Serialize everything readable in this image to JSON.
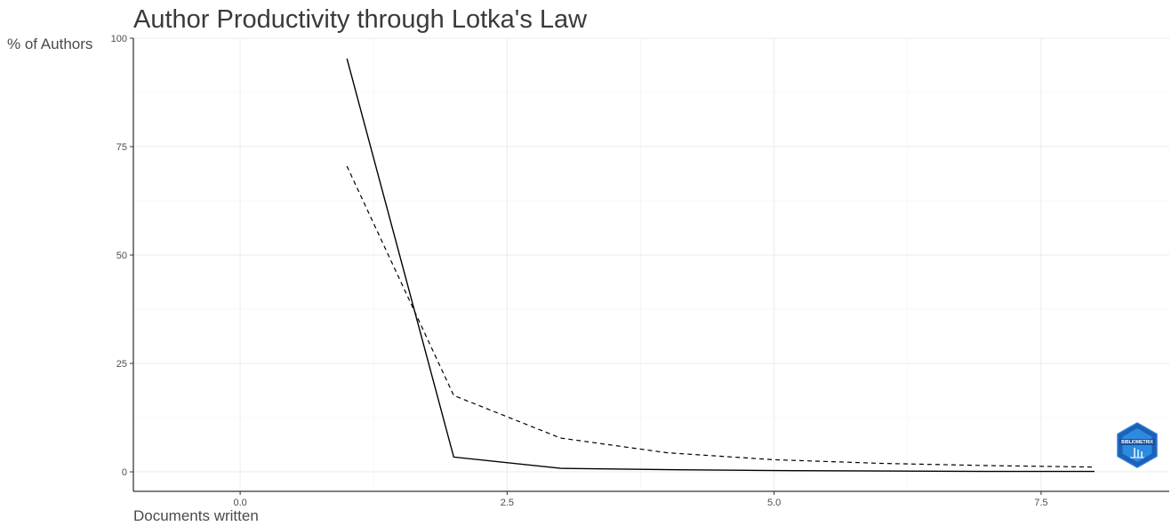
{
  "chart_data": {
    "type": "line",
    "title": "Author Productivity through Lotka's Law",
    "xlabel": "Documents written",
    "ylabel": "% of Authors",
    "xlim": [
      -1,
      8.7
    ],
    "ylim": [
      -4.5,
      100
    ],
    "x_ticks": [
      0,
      2.5,
      5,
      7.5
    ],
    "x_tick_labels": [
      "0.0",
      "2.5",
      "5.0",
      "7.5"
    ],
    "y_ticks": [
      0,
      25,
      50,
      75,
      100
    ],
    "y_tick_labels": [
      "0",
      "25",
      "50",
      "75",
      "100"
    ],
    "grid": true,
    "legend": "none",
    "series": [
      {
        "style": "solid",
        "x": [
          1,
          2,
          3,
          4,
          5,
          6,
          7,
          8
        ],
        "values": [
          95.3,
          3.4,
          0.8,
          0.5,
          0.3,
          0.2,
          0.1,
          0.1
        ]
      },
      {
        "style": "dashed",
        "x": [
          1,
          2,
          3,
          4,
          5,
          6,
          7,
          8
        ],
        "values": [
          70.5,
          17.6,
          7.8,
          4.4,
          2.8,
          1.96,
          1.44,
          1.1
        ]
      }
    ],
    "logo_text": "BIBLIOMETRIX"
  }
}
